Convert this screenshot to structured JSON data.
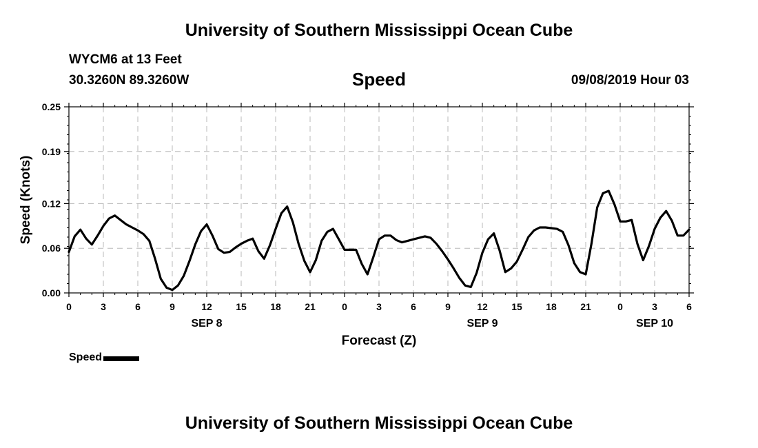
{
  "header": {
    "title": "University of Southern Mississippi Ocean Cube",
    "station": "WYCM6 at 13 Feet",
    "coords": "30.3260N 89.3260W",
    "timestamp": "09/08/2019 Hour 03"
  },
  "footer": {
    "title": "University of Southern Mississippi Ocean Cube"
  },
  "chart_data": {
    "type": "line",
    "title": "Speed",
    "xlabel": "Forecast (Z)",
    "ylabel": "Speed (Knots)",
    "xlim": [
      0,
      54
    ],
    "ylim": [
      0,
      0.25
    ],
    "y_ticks": [
      0.0,
      0.06,
      0.12,
      0.19,
      0.25
    ],
    "y_tick_labels": [
      "0.00",
      "0.06",
      "0.12",
      "0.19",
      "0.25"
    ],
    "x_ticks": [
      0,
      3,
      6,
      9,
      12,
      15,
      18,
      21,
      24,
      27,
      30,
      33,
      36,
      39,
      42,
      45,
      48,
      51,
      54
    ],
    "x_tick_labels": [
      "0",
      "3",
      "6",
      "9",
      "12",
      "15",
      "18",
      "21",
      "0",
      "3",
      "6",
      "9",
      "12",
      "15",
      "18",
      "21",
      "0",
      "3",
      "6"
    ],
    "date_labels": [
      {
        "label": "SEP 8",
        "x": 12
      },
      {
        "label": "SEP 9",
        "x": 36
      },
      {
        "label": "SEP 10",
        "x": 51
      }
    ],
    "grid": true,
    "legend": "bottom-left",
    "color": "#000000",
    "series": [
      {
        "name": "Speed",
        "x": [
          0,
          0.5,
          1,
          1.5,
          2,
          2.5,
          3,
          3.5,
          4,
          4.5,
          5,
          5.5,
          6,
          6.5,
          7,
          7.5,
          8,
          8.5,
          9,
          9.5,
          10,
          10.5,
          11,
          11.5,
          12,
          12.5,
          13,
          13.5,
          14,
          14.5,
          15,
          15.5,
          16,
          16.5,
          17,
          17.5,
          18,
          18.5,
          19,
          19.5,
          20,
          20.5,
          21,
          21.5,
          22,
          22.5,
          23,
          23.5,
          24,
          24.5,
          25,
          25.5,
          26,
          26.5,
          27,
          27.5,
          28,
          28.5,
          29,
          29.5,
          30,
          30.5,
          31,
          31.5,
          32,
          32.5,
          33,
          33.5,
          34,
          34.5,
          35,
          35.5,
          36,
          36.5,
          37,
          37.5,
          38,
          38.5,
          39,
          39.5,
          40,
          40.5,
          41,
          41.5,
          42,
          42.5,
          43,
          43.5,
          44,
          44.5,
          45,
          45.5,
          46,
          46.5,
          47,
          47.5,
          48,
          48.5,
          49,
          49.5,
          50,
          50.5,
          51,
          51.5,
          52,
          52.5,
          53,
          53.5,
          54
        ],
        "values": [
          0.055,
          0.076,
          0.085,
          0.073,
          0.065,
          0.077,
          0.09,
          0.1,
          0.104,
          0.098,
          0.092,
          0.088,
          0.084,
          0.079,
          0.07,
          0.046,
          0.019,
          0.007,
          0.004,
          0.01,
          0.023,
          0.043,
          0.065,
          0.083,
          0.092,
          0.077,
          0.059,
          0.054,
          0.055,
          0.061,
          0.066,
          0.07,
          0.073,
          0.056,
          0.046,
          0.064,
          0.086,
          0.107,
          0.116,
          0.095,
          0.066,
          0.043,
          0.028,
          0.044,
          0.07,
          0.082,
          0.086,
          0.072,
          0.058,
          0.058,
          0.058,
          0.039,
          0.025,
          0.048,
          0.072,
          0.077,
          0.077,
          0.071,
          0.068,
          0.07,
          0.072,
          0.074,
          0.076,
          0.074,
          0.066,
          0.056,
          0.045,
          0.033,
          0.02,
          0.01,
          0.008,
          0.027,
          0.054,
          0.072,
          0.08,
          0.057,
          0.028,
          0.033,
          0.042,
          0.058,
          0.075,
          0.084,
          0.088,
          0.088,
          0.087,
          0.086,
          0.082,
          0.064,
          0.04,
          0.028,
          0.025,
          0.066,
          0.115,
          0.134,
          0.137,
          0.119,
          0.096,
          0.096,
          0.098,
          0.066,
          0.044,
          0.063,
          0.086,
          0.101,
          0.11,
          0.097,
          0.077,
          0.077,
          0.085
        ]
      }
    ]
  }
}
